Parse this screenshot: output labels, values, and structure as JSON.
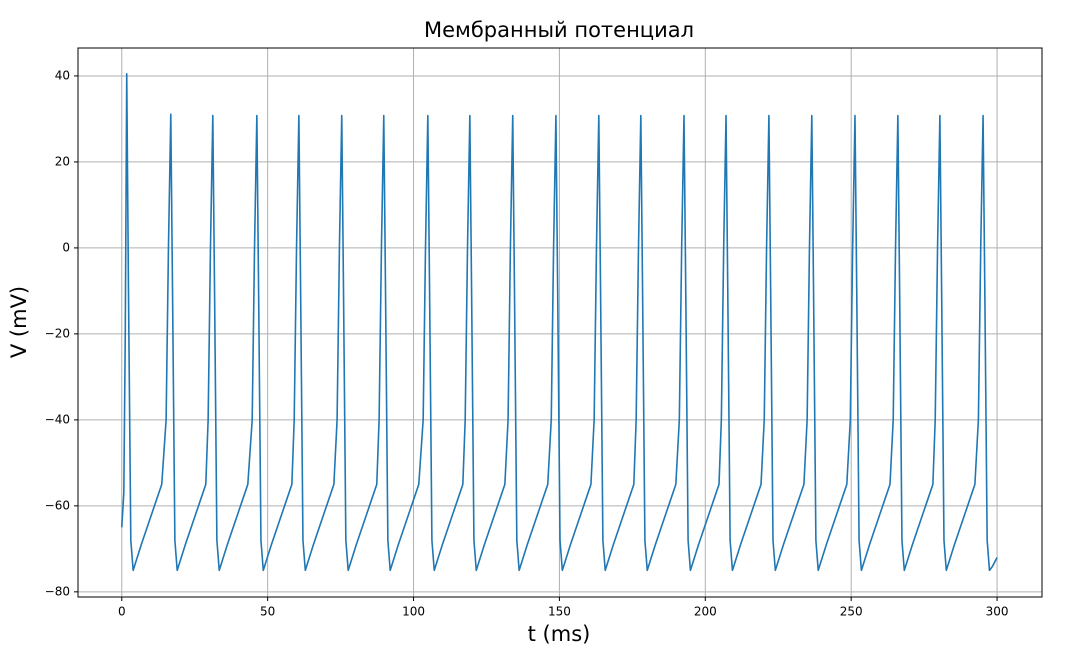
{
  "chart_data": {
    "type": "line",
    "title": "Мембранный потенциал",
    "x_label": "t (ms)",
    "y_label": "V (mV)",
    "color": "#1f77b4",
    "grid": true,
    "xlim": [
      -15,
      315.4
    ],
    "ylim": [
      -81.2,
      46.5
    ],
    "xticks": [
      0,
      50,
      100,
      150,
      200,
      250,
      300
    ],
    "yticks": [
      {
        "value": -80,
        "label": "−80"
      },
      {
        "value": -60,
        "label": "−60"
      },
      {
        "value": -40,
        "label": "−40"
      },
      {
        "value": -20,
        "label": "−20"
      },
      0,
      20,
      40
    ],
    "x": [
      0,
      0.7,
      1.2,
      1.7,
      2.3,
      3.1,
      3.9,
      6.7,
      11.7,
      13.7,
      15.2,
      16.0,
      16.8,
      17.4,
      18.2,
      19.0,
      21.8,
      26.8,
      28.8,
      29.6,
      30.4,
      31.2,
      31.8,
      32.6,
      33.4,
      36.2,
      41.2,
      43.2,
      44.7,
      45.5,
      46.3,
      46.9,
      47.7,
      48.5,
      51.3,
      56.3,
      58.3,
      59.1,
      59.9,
      60.7,
      61.3,
      62.1,
      62.9,
      65.7,
      70.7,
      72.7,
      73.8,
      74.6,
      75.4,
      76.0,
      76.8,
      77.6,
      80.4,
      85.4,
      87.4,
      88.2,
      89.0,
      89.8,
      90.4,
      91.2,
      92.0,
      94.8,
      99.8,
      101.8,
      103.3,
      104.1,
      104.9,
      105.5,
      106.3,
      107.1,
      109.9,
      114.9,
      116.9,
      117.7,
      118.5,
      119.3,
      119.9,
      120.7,
      121.5,
      124.3,
      129.3,
      131.3,
      132.4,
      133.2,
      134.0,
      134.6,
      135.4,
      136.2,
      139.0,
      144.0,
      146.0,
      147.2,
      148.0,
      148.8,
      149.4,
      150.2,
      151.0,
      153.8,
      158.8,
      160.8,
      161.9,
      162.7,
      163.5,
      164.1,
      164.9,
      165.7,
      168.5,
      173.5,
      175.5,
      176.3,
      177.1,
      177.9,
      178.5,
      179.3,
      180.1,
      182.9,
      187.9,
      189.9,
      191.1,
      191.9,
      192.7,
      193.3,
      194.1,
      194.9,
      197.7,
      202.7,
      204.7,
      205.5,
      206.3,
      207.1,
      207.7,
      208.5,
      209.3,
      212.1,
      217.1,
      219.1,
      220.2,
      221.0,
      221.8,
      222.4,
      223.2,
      224.0,
      226.8,
      231.8,
      233.8,
      234.9,
      235.7,
      236.5,
      237.1,
      237.9,
      238.7,
      241.5,
      246.5,
      248.5,
      249.7,
      250.5,
      251.3,
      251.9,
      252.7,
      253.5,
      256.3,
      261.3,
      263.3,
      264.4,
      265.2,
      266.0,
      266.6,
      267.4,
      268.2,
      271.0,
      276.0,
      278.0,
      278.8,
      279.6,
      280.4,
      281.0,
      281.8,
      282.6,
      285.4,
      290.4,
      292.4,
      293.6,
      294.4,
      295.2,
      295.8,
      296.6,
      297.4,
      298.5,
      300.0
    ],
    "values": [
      -65,
      -57,
      -20,
      40.5,
      -10,
      -68,
      -75,
      -69,
      -59,
      -55,
      -40,
      0,
      31.1,
      -10,
      -68,
      -75,
      -69,
      -59,
      -55,
      -40,
      0,
      30.8,
      -10,
      -68,
      -75,
      -69,
      -59,
      -55,
      -40,
      0,
      30.8,
      -10,
      -68,
      -75,
      -69,
      -59,
      -55,
      -40,
      0,
      30.8,
      -10,
      -68,
      -75,
      -69,
      -59,
      -55,
      -40,
      0,
      30.8,
      -10,
      -68,
      -75,
      -69,
      -59,
      -55,
      -40,
      0,
      30.8,
      -10,
      -68,
      -75,
      -69,
      -59,
      -55,
      -40,
      0,
      30.8,
      -10,
      -68,
      -75,
      -69,
      -59,
      -55,
      -40,
      0,
      30.8,
      -10,
      -68,
      -75,
      -69,
      -59,
      -55,
      -40,
      0,
      30.8,
      -10,
      -68,
      -75,
      -69,
      -59,
      -55,
      -40,
      0,
      30.8,
      -10,
      -68,
      -75,
      -69,
      -59,
      -55,
      -40,
      0,
      30.8,
      -10,
      -68,
      -75,
      -69,
      -59,
      -55,
      -40,
      0,
      30.8,
      -10,
      -68,
      -75,
      -69,
      -59,
      -55,
      -40,
      0,
      30.8,
      -10,
      -68,
      -75,
      -69,
      -59,
      -55,
      -40,
      0,
      30.8,
      -10,
      -68,
      -75,
      -69,
      -59,
      -55,
      -40,
      0,
      30.8,
      -10,
      -68,
      -75,
      -69,
      -59,
      -55,
      -40,
      0,
      30.8,
      -10,
      -68,
      -75,
      -69,
      -59,
      -55,
      -40,
      0,
      30.8,
      -10,
      -68,
      -75,
      -69,
      -59,
      -55,
      -40,
      0,
      30.8,
      -10,
      -68,
      -75,
      -69,
      -59,
      -55,
      -40,
      0,
      30.8,
      -10,
      -68,
      -75,
      -69,
      -59,
      -55,
      -40,
      0,
      30.8,
      -10,
      -68,
      -75,
      -74,
      -72
    ]
  }
}
